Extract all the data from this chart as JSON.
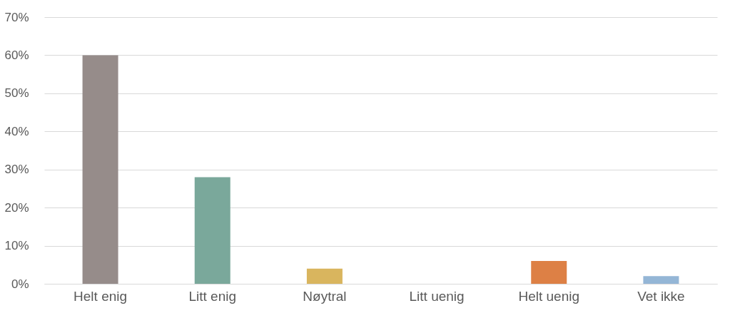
{
  "chart_data": {
    "type": "bar",
    "categories": [
      "Helt enig",
      "Litt enig",
      "Nøytral",
      "Litt uenig",
      "Helt uenig",
      "Vet ikke"
    ],
    "values": [
      60,
      28,
      4,
      0,
      6,
      2
    ],
    "colors": [
      "#968c8a",
      "#7aa89b",
      "#d9b55e",
      "#a5a5a5",
      "#dd8045",
      "#94b6d6"
    ],
    "ylim": [
      0,
      70
    ],
    "yticks": [
      {
        "value": 0,
        "label": "0%"
      },
      {
        "value": 10,
        "label": "10%"
      },
      {
        "value": 20,
        "label": "20%"
      },
      {
        "value": 30,
        "label": "30%"
      },
      {
        "value": 40,
        "label": "40%"
      },
      {
        "value": 50,
        "label": "50%"
      },
      {
        "value": 60,
        "label": "60%"
      },
      {
        "value": 70,
        "label": "70%"
      }
    ],
    "grid": "y",
    "legend": false
  }
}
